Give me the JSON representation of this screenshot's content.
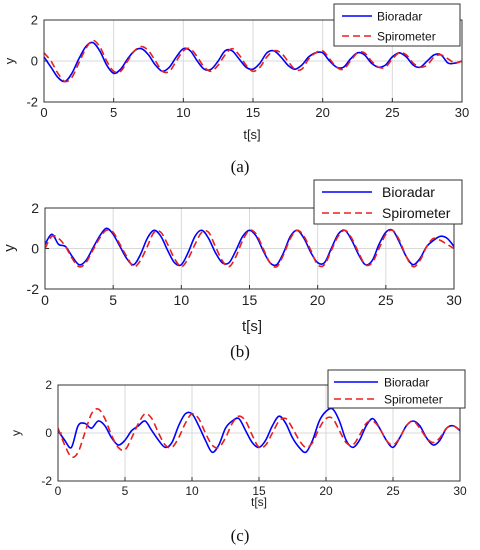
{
  "chart_data": [
    {
      "type": "line",
      "caption": "(a)",
      "xlabel": "t[s]",
      "ylabel": "y",
      "xlim": [
        0,
        30
      ],
      "ylim": [
        -2,
        2
      ],
      "xticks": [
        "0",
        "5",
        "10",
        "15",
        "20",
        "25",
        "30"
      ],
      "yticks": [
        "-2",
        "0",
        "2"
      ],
      "grid": true,
      "legend_position": "top-right",
      "series": [
        {
          "name": "Bioradar",
          "color": "#0000ff",
          "style": "solid",
          "x": [
            0,
            0.5,
            1,
            1.5,
            2,
            2.5,
            3,
            3.5,
            4,
            4.5,
            5,
            5.5,
            6,
            6.5,
            7,
            7.5,
            8,
            8.5,
            9,
            9.5,
            10,
            10.5,
            11,
            11.5,
            12,
            12.5,
            13,
            13.5,
            14,
            14.5,
            15,
            15.5,
            16,
            16.5,
            17,
            17.5,
            18,
            18.5,
            19,
            19.5,
            20,
            20.5,
            21,
            21.5,
            22,
            22.5,
            23,
            23.5,
            24,
            24.5,
            25,
            25.5,
            26,
            26.5,
            27,
            27.5,
            28,
            28.5,
            29,
            29.5,
            30
          ],
          "y": [
            0.2,
            -0.3,
            -0.8,
            -1.0,
            -0.6,
            0.1,
            0.7,
            0.9,
            0.5,
            -0.2,
            -0.6,
            -0.4,
            0.1,
            0.5,
            0.6,
            0.3,
            -0.2,
            -0.5,
            -0.3,
            0.2,
            0.6,
            0.5,
            0.0,
            -0.4,
            -0.4,
            0.0,
            0.5,
            0.5,
            0.1,
            -0.3,
            -0.4,
            -0.1,
            0.4,
            0.5,
            0.2,
            -0.2,
            -0.4,
            -0.2,
            0.2,
            0.4,
            0.4,
            0.0,
            -0.3,
            -0.3,
            0.1,
            0.4,
            0.3,
            -0.1,
            -0.3,
            -0.2,
            0.2,
            0.4,
            0.2,
            -0.2,
            -0.3,
            0.0,
            0.3,
            0.3,
            -0.1,
            -0.1,
            0.0
          ]
        },
        {
          "name": "Spirometer",
          "color": "#e8201e",
          "style": "dashed",
          "x": [
            0,
            0.5,
            1,
            1.5,
            2,
            2.5,
            3,
            3.5,
            4,
            4.5,
            5,
            5.5,
            6,
            6.5,
            7,
            7.5,
            8,
            8.5,
            9,
            9.5,
            10,
            10.5,
            11,
            11.5,
            12,
            12.5,
            13,
            13.5,
            14,
            14.5,
            15,
            15.5,
            16,
            16.5,
            17,
            17.5,
            18,
            18.5,
            19,
            19.5,
            20,
            20.5,
            21,
            21.5,
            22,
            22.5,
            23,
            23.5,
            24,
            24.5,
            25,
            25.5,
            26,
            26.5,
            27,
            27.5,
            28,
            28.5,
            29,
            29.5,
            30
          ],
          "y": [
            0.4,
            0.0,
            -0.6,
            -1.0,
            -0.8,
            -0.1,
            0.6,
            1.0,
            0.7,
            0.0,
            -0.5,
            -0.5,
            0.0,
            0.5,
            0.7,
            0.5,
            0.0,
            -0.5,
            -0.5,
            0.0,
            0.5,
            0.6,
            0.2,
            -0.3,
            -0.5,
            -0.2,
            0.3,
            0.6,
            0.3,
            -0.2,
            -0.5,
            -0.3,
            0.2,
            0.5,
            0.4,
            0.0,
            -0.4,
            -0.4,
            0.1,
            0.4,
            0.5,
            0.1,
            -0.3,
            -0.4,
            0.0,
            0.4,
            0.4,
            0.0,
            -0.3,
            -0.3,
            0.1,
            0.4,
            0.3,
            -0.1,
            -0.3,
            -0.2,
            0.2,
            0.3,
            0.1,
            -0.1,
            0.0
          ]
        }
      ]
    },
    {
      "type": "line",
      "caption": "(b)",
      "xlabel": "t[s]",
      "ylabel": "y",
      "xlim": [
        0,
        30
      ],
      "ylim": [
        -2,
        2
      ],
      "xticks": [
        "0",
        "5",
        "10",
        "15",
        "20",
        "25",
        "30"
      ],
      "yticks": [
        "-2",
        "0",
        "2"
      ],
      "grid": true,
      "legend_position": "top-right",
      "series": [
        {
          "name": "Bioradar",
          "color": "#0000ff",
          "style": "solid",
          "x": [
            0,
            0.5,
            1,
            1.5,
            2,
            2.5,
            3,
            3.5,
            4,
            4.5,
            5,
            5.5,
            6,
            6.5,
            7,
            7.5,
            8,
            8.5,
            9,
            9.5,
            10,
            10.5,
            11,
            11.5,
            12,
            12.5,
            13,
            13.5,
            14,
            14.5,
            15,
            15.5,
            16,
            16.5,
            17,
            17.5,
            18,
            18.5,
            19,
            19.5,
            20,
            20.5,
            21,
            21.5,
            22,
            22.5,
            23,
            23.5,
            24,
            24.5,
            25,
            25.5,
            26,
            26.5,
            27,
            27.5,
            28,
            28.5,
            29,
            29.5,
            30
          ],
          "y": [
            0.2,
            0.7,
            0.2,
            0.1,
            -0.4,
            -0.8,
            -0.6,
            0.0,
            0.6,
            1.0,
            0.7,
            0.1,
            -0.5,
            -0.8,
            -0.3,
            0.5,
            0.9,
            0.6,
            -0.1,
            -0.7,
            -0.8,
            -0.2,
            0.6,
            0.9,
            0.5,
            -0.2,
            -0.7,
            -0.7,
            -0.1,
            0.6,
            0.9,
            0.6,
            -0.1,
            -0.7,
            -0.8,
            -0.2,
            0.6,
            0.9,
            0.5,
            -0.2,
            -0.7,
            -0.7,
            0.0,
            0.7,
            0.9,
            0.4,
            -0.3,
            -0.8,
            -0.6,
            0.2,
            0.8,
            0.9,
            0.3,
            -0.4,
            -0.8,
            -0.5,
            0.1,
            0.4,
            0.6,
            0.5,
            0.1
          ]
        },
        {
          "name": "Spirometer",
          "color": "#e8201e",
          "style": "dashed",
          "x": [
            0,
            0.5,
            1,
            1.5,
            2,
            2.5,
            3,
            3.5,
            4,
            4.5,
            5,
            5.5,
            6,
            6.5,
            7,
            7.5,
            8,
            8.5,
            9,
            9.5,
            10,
            10.5,
            11,
            11.5,
            12,
            12.5,
            13,
            13.5,
            14,
            14.5,
            15,
            15.5,
            16,
            16.5,
            17,
            17.5,
            18,
            18.5,
            19,
            19.5,
            20,
            20.5,
            21,
            21.5,
            22,
            22.5,
            23,
            23.5,
            24,
            24.5,
            25,
            25.5,
            26,
            26.5,
            27,
            27.5,
            28,
            28.5,
            29,
            29.5,
            30
          ],
          "y": [
            0.0,
            0.6,
            0.5,
            0.1,
            -0.5,
            -0.9,
            -0.7,
            -0.1,
            0.5,
            0.9,
            0.8,
            0.2,
            -0.4,
            -0.9,
            -0.6,
            0.1,
            0.8,
            0.8,
            0.2,
            -0.5,
            -0.9,
            -0.5,
            0.2,
            0.8,
            0.8,
            0.1,
            -0.6,
            -0.9,
            -0.4,
            0.4,
            0.9,
            0.7,
            0.0,
            -0.7,
            -0.9,
            -0.3,
            0.5,
            0.9,
            0.6,
            -0.1,
            -0.8,
            -0.8,
            -0.1,
            0.6,
            0.9,
            0.5,
            -0.2,
            -0.8,
            -0.7,
            0.0,
            0.7,
            0.9,
            0.4,
            -0.4,
            -0.9,
            -0.6,
            0.1,
            0.5,
            0.4,
            0.2,
            0.0
          ]
        }
      ]
    },
    {
      "type": "line",
      "caption": "(c)",
      "xlabel": "t[s]",
      "ylabel": "y",
      "xlim": [
        0,
        30
      ],
      "ylim": [
        -2,
        2
      ],
      "xticks": [
        "0",
        "5",
        "10",
        "15",
        "20",
        "25",
        "30"
      ],
      "yticks": [
        "-2",
        "0",
        "2"
      ],
      "grid": true,
      "legend_position": "top-right",
      "series": [
        {
          "name": "Bioradar",
          "color": "#0000ff",
          "style": "solid",
          "x": [
            0,
            0.5,
            1,
            1.5,
            2,
            2.5,
            3,
            3.5,
            4,
            4.5,
            5,
            5.5,
            6,
            6.5,
            7,
            7.5,
            8,
            8.5,
            9,
            9.5,
            10,
            10.5,
            11,
            11.5,
            12,
            12.5,
            13,
            13.5,
            14,
            14.5,
            15,
            15.5,
            16,
            16.5,
            17,
            17.5,
            18,
            18.5,
            19,
            19.5,
            20,
            20.5,
            21,
            21.5,
            22,
            22.5,
            23,
            23.5,
            24,
            24.5,
            25,
            25.5,
            26,
            26.5,
            27,
            27.5,
            28,
            28.5,
            29,
            29.5,
            30
          ],
          "y": [
            0.1,
            -0.3,
            -0.6,
            0.3,
            0.4,
            0.2,
            0.5,
            0.3,
            -0.2,
            -0.5,
            -0.3,
            0.1,
            0.3,
            0.5,
            0.1,
            -0.3,
            -0.6,
            -0.4,
            0.3,
            0.8,
            0.8,
            0.3,
            -0.3,
            -0.8,
            -0.5,
            0.2,
            0.5,
            0.6,
            0.1,
            -0.4,
            -0.6,
            -0.3,
            0.3,
            0.7,
            0.4,
            -0.2,
            -0.6,
            -0.8,
            -0.3,
            0.5,
            0.9,
            1.0,
            0.5,
            -0.3,
            -0.6,
            -0.3,
            0.3,
            0.6,
            0.2,
            -0.3,
            -0.6,
            -0.2,
            0.3,
            0.5,
            0.3,
            -0.2,
            -0.5,
            -0.3,
            0.2,
            0.3,
            0.1
          ]
        },
        {
          "name": "Spirometer",
          "color": "#e8201e",
          "style": "dashed",
          "x": [
            0,
            0.5,
            1,
            1.5,
            2,
            2.5,
            3,
            3.5,
            4,
            4.5,
            5,
            5.5,
            6,
            6.5,
            7,
            7.5,
            8,
            8.5,
            9,
            9.5,
            10,
            10.5,
            11,
            11.5,
            12,
            12.5,
            13,
            13.5,
            14,
            14.5,
            15,
            15.5,
            16,
            16.5,
            17,
            17.5,
            18,
            18.5,
            19,
            19.5,
            20,
            20.5,
            21,
            21.5,
            22,
            22.5,
            23,
            23.5,
            24,
            24.5,
            25,
            25.5,
            26,
            26.5,
            27,
            27.5,
            28,
            28.5,
            29,
            29.5,
            30
          ],
          "y": [
            0.2,
            -0.5,
            -1.0,
            -0.8,
            0.0,
            0.8,
            1.0,
            0.6,
            -0.1,
            -0.6,
            -0.7,
            -0.2,
            0.4,
            0.8,
            0.6,
            0.0,
            -0.5,
            -0.6,
            -0.2,
            0.4,
            0.8,
            0.6,
            0.0,
            -0.5,
            -0.6,
            -0.2,
            0.4,
            0.7,
            0.5,
            -0.1,
            -0.6,
            -0.5,
            0.0,
            0.5,
            0.6,
            0.2,
            -0.3,
            -0.6,
            -0.4,
            0.2,
            0.6,
            0.6,
            0.1,
            -0.4,
            -0.5,
            -0.1,
            0.4,
            0.5,
            0.2,
            -0.3,
            -0.5,
            -0.2,
            0.3,
            0.5,
            0.2,
            -0.2,
            -0.4,
            -0.2,
            0.2,
            0.3,
            0.1
          ]
        }
      ]
    }
  ]
}
